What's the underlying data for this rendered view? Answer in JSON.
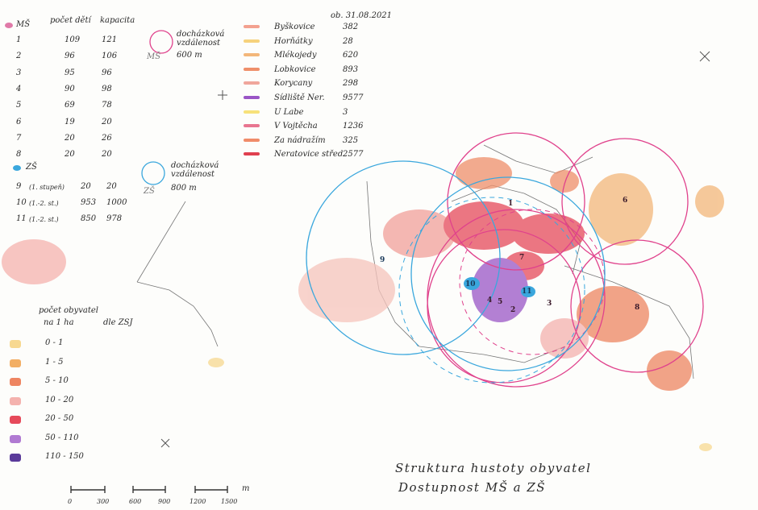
{
  "ms_table": {
    "symbol_label": "MŠ",
    "col_children": "počet dětí",
    "col_capacity": "kapacita",
    "color": "#e07aa8",
    "rows": [
      {
        "n": "1",
        "children": "109",
        "cap": "121"
      },
      {
        "n": "2",
        "children": "96",
        "cap": "106"
      },
      {
        "n": "3",
        "children": "95",
        "cap": "96"
      },
      {
        "n": "4",
        "children": "90",
        "cap": "98"
      },
      {
        "n": "5",
        "children": "69",
        "cap": "78"
      },
      {
        "n": "6",
        "children": "19",
        "cap": "20"
      },
      {
        "n": "7",
        "children": "20",
        "cap": "26"
      },
      {
        "n": "8",
        "children": "20",
        "cap": "20"
      }
    ]
  },
  "zs_table": {
    "symbol_label": "ZŠ",
    "color": "#3aa7dd",
    "rows": [
      {
        "n": "9",
        "note": "(1. stupeň)",
        "children": "20",
        "cap": "20"
      },
      {
        "n": "10",
        "note": "(1.-2. st.)",
        "children": "953",
        "cap": "1000"
      },
      {
        "n": "11",
        "note": "(1.-2. st.)",
        "children": "850",
        "cap": "978"
      }
    ]
  },
  "walk_ms": {
    "label": "docházková vzdálenost",
    "dist": "600 m",
    "tag": "MŠ",
    "color": "#e0428c"
  },
  "walk_zs": {
    "label": "docházková vzdálenost",
    "dist": "800 m",
    "tag": "ZŠ",
    "color": "#3aa7dd"
  },
  "districts": {
    "date": "ob. 31.08.2021",
    "items": [
      {
        "name": "Byškovice",
        "pop": "382",
        "color": "#f3a18f"
      },
      {
        "name": "Horňátky",
        "pop": "28",
        "color": "#f6d27c"
      },
      {
        "name": "Mlékojedy",
        "pop": "620",
        "color": "#f3b77a"
      },
      {
        "name": "Lobkovice",
        "pop": "893",
        "color": "#ef8f6a"
      },
      {
        "name": "Korycany",
        "pop": "298",
        "color": "#f0a69c"
      },
      {
        "name": "Sídliště Ner.",
        "pop": "9577",
        "color": "#9a55c6"
      },
      {
        "name": "U Labe",
        "pop": "3",
        "color": "#f7e17a"
      },
      {
        "name": "V Vojtěcha",
        "pop": "1236",
        "color": "#e87590"
      },
      {
        "name": "Za nádražím",
        "pop": "325",
        "color": "#f08c6a"
      },
      {
        "name": "Neratovice střed",
        "pop": "2577",
        "color": "#e0404f"
      }
    ]
  },
  "density_legend": {
    "title_line1": "počet obyvatel",
    "title_line2": "na 1 ha",
    "title_note": "dle ZSJ",
    "classes": [
      {
        "label": "0 - 1",
        "color": "#f7d890"
      },
      {
        "label": "1 - 5",
        "color": "#f2ae64"
      },
      {
        "label": "5 - 10",
        "color": "#ee8561"
      },
      {
        "label": "10 - 20",
        "color": "#f4b2ae"
      },
      {
        "label": "20 - 50",
        "color": "#e6495a"
      },
      {
        "label": "50 - 110",
        "color": "#b07ad2"
      },
      {
        "label": "110 - 150",
        "color": "#5a3a9a"
      }
    ]
  },
  "scale": {
    "unit": "m",
    "ticks": [
      "0",
      "300",
      "600",
      "900",
      "1200",
      "1500"
    ]
  },
  "title": {
    "line1": "Struktura hustoty obyvatel",
    "line2": "Dostupnost MŠ a ZŠ"
  },
  "map_labels": [
    {
      "id": "1",
      "kind": "ms"
    },
    {
      "id": "2",
      "kind": "ms"
    },
    {
      "id": "3",
      "kind": "ms"
    },
    {
      "id": "4",
      "kind": "ms"
    },
    {
      "id": "5",
      "kind": "ms"
    },
    {
      "id": "6",
      "kind": "ms"
    },
    {
      "id": "7",
      "kind": "ms"
    },
    {
      "id": "8",
      "kind": "ms"
    },
    {
      "id": "9",
      "kind": "zs"
    },
    {
      "id": "10",
      "kind": "zs"
    },
    {
      "id": "11",
      "kind": "zs"
    }
  ]
}
